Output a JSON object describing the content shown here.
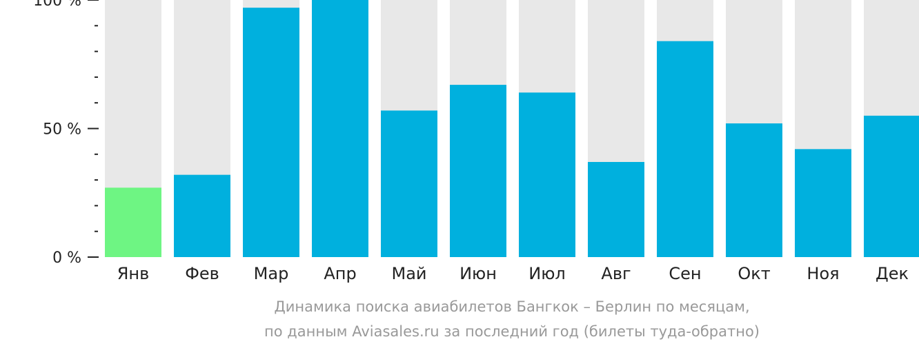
{
  "chart_data": {
    "type": "bar",
    "categories": [
      "Янв",
      "Фев",
      "Мар",
      "Апр",
      "Май",
      "Июн",
      "Июл",
      "Авг",
      "Сен",
      "Окт",
      "Ноя",
      "Дек"
    ],
    "values": [
      27,
      32,
      97,
      100,
      57,
      67,
      64,
      37,
      84,
      52,
      42,
      55
    ],
    "highlight_index": 0,
    "ylim": [
      0,
      100
    ],
    "y_ticks": [
      {
        "value": 100,
        "label": "100 %"
      },
      {
        "value": 50,
        "label": "50 %"
      },
      {
        "value": 0,
        "label": "0 %"
      }
    ],
    "minor_tick_step": 10,
    "colors": {
      "bar": "#00b0de",
      "highlight": "#6ef583",
      "background": "#e8e8e8",
      "axis": "#222222"
    },
    "caption": [
      "Динамика поиска авиабилетов Бангкок – Берлин по месяцам,",
      "по данным Aviasales.ru за последний год (билеты туда-обратно)"
    ],
    "grid": false,
    "legend": "none"
  }
}
